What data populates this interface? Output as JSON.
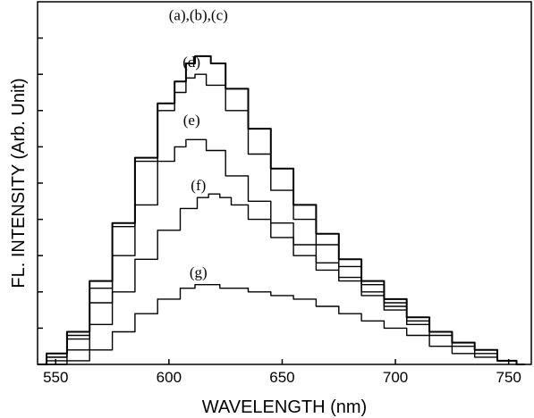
{
  "chart_data": {
    "type": "line",
    "xlabel": "WAVELENGTH (nm)",
    "ylabel": "FL. INTENSITY (Arb. Unit)",
    "xlim": [
      542,
      760
    ],
    "ylim": [
      0,
      100
    ],
    "xticks": [
      550,
      600,
      650,
      700,
      750
    ],
    "xtick_labels": [
      "550",
      "600",
      "650",
      "700",
      "750"
    ],
    "yticks": [
      10,
      20,
      30,
      40,
      50,
      60,
      70,
      80,
      90
    ],
    "yticks_labeled": false,
    "grid": false,
    "legend": "none",
    "series": [
      {
        "name": "(a),(b),(c)",
        "label_x": 613,
        "label_y": 95,
        "x": [
          542,
          550,
          560,
          570,
          580,
          590,
          600,
          605,
          610,
          613,
          617,
          620,
          630,
          640,
          650,
          660,
          670,
          680,
          690,
          700,
          710,
          720,
          730,
          740,
          750,
          757
        ],
        "y": [
          0,
          3,
          9,
          23,
          39,
          57,
          72,
          78,
          83,
          85,
          85,
          83,
          76,
          65,
          54,
          44,
          36,
          29,
          23,
          18,
          13,
          9,
          6,
          4,
          1,
          0
        ]
      },
      {
        "name": "(d)",
        "label_x": 610,
        "label_y": 82,
        "x": [
          542,
          550,
          560,
          570,
          580,
          590,
          600,
          605,
          610,
          613,
          620,
          630,
          640,
          650,
          660,
          670,
          680,
          690,
          700,
          710,
          720,
          730,
          740,
          750,
          757
        ],
        "y": [
          0,
          2,
          8,
          21,
          38,
          56,
          70,
          75,
          79,
          80,
          77,
          70,
          58,
          48,
          40,
          33,
          27,
          22,
          17,
          13,
          9,
          6,
          4,
          1,
          0
        ]
      },
      {
        "name": "(e)",
        "label_x": 610,
        "label_y": 66,
        "x": [
          542,
          550,
          560,
          570,
          580,
          590,
          600,
          605,
          610,
          613,
          620,
          630,
          640,
          650,
          660,
          670,
          680,
          690,
          700,
          710,
          720,
          730,
          740,
          750,
          757
        ],
        "y": [
          0,
          2,
          7,
          17,
          30,
          44,
          56,
          60,
          62,
          62,
          59,
          52,
          45,
          39,
          33,
          28,
          24,
          20,
          16,
          12,
          9,
          6,
          4,
          1,
          0
        ]
      },
      {
        "name": "(f)",
        "label_x": 613,
        "label_y": 48,
        "x": [
          542,
          550,
          560,
          570,
          580,
          590,
          600,
          610,
          615,
          620,
          625,
          630,
          640,
          650,
          660,
          670,
          680,
          690,
          700,
          710,
          720,
          730,
          740,
          750,
          757
        ],
        "y": [
          0,
          1,
          4,
          11,
          20,
          29,
          37,
          43,
          46,
          47,
          46,
          44,
          40,
          35,
          30,
          26,
          23,
          19,
          15,
          11,
          8,
          5,
          3,
          1,
          0
        ]
      },
      {
        "name": "(g)",
        "label_x": 613,
        "label_y": 24,
        "x": [
          542,
          550,
          560,
          570,
          580,
          590,
          600,
          610,
          613,
          620,
          625,
          630,
          640,
          650,
          660,
          670,
          680,
          690,
          700,
          710,
          720,
          730,
          740,
          750,
          757
        ],
        "y": [
          0,
          0,
          1,
          4,
          9,
          14,
          18,
          21,
          22,
          22,
          21,
          21,
          20,
          19,
          18,
          16,
          14,
          12,
          10,
          8,
          5,
          3,
          2,
          1,
          0
        ]
      }
    ]
  }
}
